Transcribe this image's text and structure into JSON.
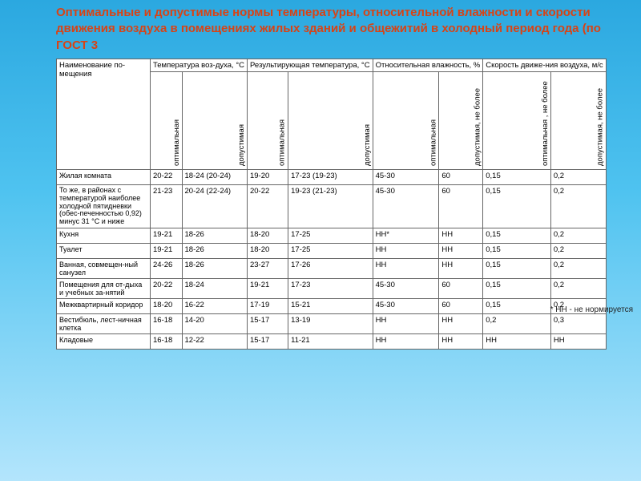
{
  "title": "Оптимальные и допустимые нормы температуры, относительной влажности и скорости движения воздуха в помещениях жилых зданий и общежитий в холодный период года (по ГОСТ 3",
  "colgroups": {
    "name": "Наименование по-мещения",
    "temp": "Температура воз-духа, °С",
    "resTemp": "Результирующая температура, °С",
    "humidity": "Относительная влажность, %",
    "speed": "Скорость движе-ния воздуха, м/с"
  },
  "subcols": {
    "opt": "оптимальная",
    "dop": "допустимая",
    "dopNeBolee": "допустимая, не более",
    "optNeBolee": "оптимальная , не более"
  },
  "rows": [
    {
      "name": "Жилая комната",
      "t1": "20-22",
      "t2": "18-24 (20-24)",
      "r1": "19-20",
      "r2": "17-23 (19-23)",
      "h1": "45-30",
      "h2": "60",
      "s1": "0,15",
      "s2": "0,2"
    },
    {
      "name": "То же, в районах с температурой наиболее холодной пятидневки (обес-печенностью 0,92) минус 31 °С и ниже",
      "t1": "21-23",
      "t2": "20-24 (22-24)",
      "r1": "20-22",
      "r2": "19-23 (21-23)",
      "h1": "45-30",
      "h2": "60",
      "s1": "0,15",
      "s2": "0,2"
    },
    {
      "name": "Кухня",
      "t1": "19-21",
      "t2": "18-26",
      "r1": "18-20",
      "r2": "17-25",
      "h1": "НН*",
      "h2": "НН",
      "s1": "0,15",
      "s2": "0,2"
    },
    {
      "name": "Туалет",
      "t1": "19-21",
      "t2": "18-26",
      "r1": "18-20",
      "r2": "17-25",
      "h1": "НН",
      "h2": "НН",
      "s1": "0,15",
      "s2": "0,2"
    },
    {
      "name": "Ванная, совмещен-ный санузел",
      "t1": "24-26",
      "t2": "18-26",
      "r1": "23-27",
      "r2": "17-26",
      "h1": "НН",
      "h2": "НН",
      "s1": "0,15",
      "s2": "0,2"
    },
    {
      "name": "Помещения для от-дыха и учебных за-нятий",
      "t1": "20-22",
      "t2": "18-24",
      "r1": "19-21",
      "r2": "17-23",
      "h1": "45-30",
      "h2": "60",
      "s1": "0,15",
      "s2": "0,2"
    },
    {
      "name": "Межквартирный коридор",
      "t1": "18-20",
      "t2": "16-22",
      "r1": "17-19",
      "r2": "15-21",
      "h1": "45-30",
      "h2": "60",
      "s1": "0,15",
      "s2": "0,2"
    },
    {
      "name": "Вестибюль, лест-ничная клетка",
      "t1": "16-18",
      "t2": "14-20",
      "r1": "15-17",
      "r2": "13-19",
      "h1": "НН",
      "h2": "НН",
      "s1": "0,2",
      "s2": "0,3"
    },
    {
      "name": "Кладовые",
      "t1": "16-18",
      "t2": "12-22",
      "r1": "15-17",
      "r2": "11-21",
      "h1": "НН",
      "h2": "НН",
      "s1": "НН",
      "s2": "НН"
    }
  ],
  "footnote": "* НН - не нормируется"
}
